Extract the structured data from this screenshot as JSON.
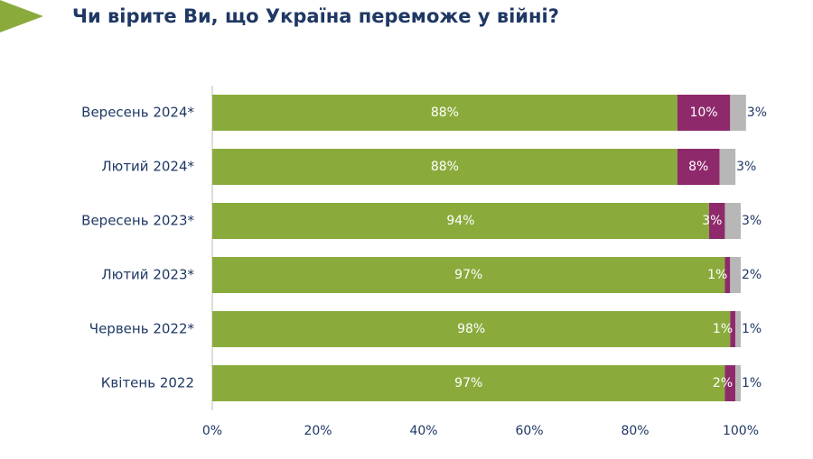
{
  "chart_data": {
    "type": "stacked-bar-horizontal",
    "title": "Чи вірите Ви, що Україна переможе у війні?",
    "categories": [
      "Вересень 2024*",
      "Лютий 2024*",
      "Вересень 2023*",
      "Лютий 2023*",
      "Червень 2022*",
      "Квітень 2022"
    ],
    "series": [
      {
        "color": "#8aab3c",
        "values": [
          88,
          88,
          94,
          97,
          98,
          97
        ],
        "value_labels": [
          "88%",
          "88%",
          "94%",
          "97%",
          "98%",
          "97%"
        ]
      },
      {
        "color": "#8e2a6b",
        "values": [
          10,
          8,
          3,
          1,
          1,
          2
        ],
        "value_labels": [
          "10%",
          "8%",
          "3%",
          "1%",
          "1%",
          "2%"
        ]
      },
      {
        "color": "#b7b7b7",
        "values": [
          3,
          3,
          3,
          2,
          1,
          1
        ],
        "value_labels": [
          "3%",
          "3%",
          "3%",
          "2%",
          "1%",
          "1%"
        ]
      }
    ],
    "xlim": [
      0,
      100
    ],
    "xticks": [
      {
        "value": 0,
        "label": "0%"
      },
      {
        "value": 20,
        "label": "20%"
      },
      {
        "value": 40,
        "label": "40%"
      },
      {
        "value": 60,
        "label": "60%"
      },
      {
        "value": 80,
        "label": "80%"
      },
      {
        "value": 100,
        "label": "100%"
      }
    ]
  }
}
